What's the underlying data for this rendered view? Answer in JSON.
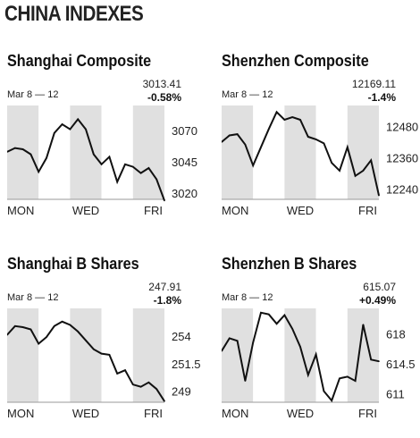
{
  "page": {
    "title": "CHINA INDEXES"
  },
  "chart_data": [
    {
      "type": "line",
      "title": "Shanghai Composite",
      "date_range": "Mar 8 — 12",
      "last_value": "3013.41",
      "change": "-0.58%",
      "x_ticks": [
        "MON",
        "WED",
        "FRI"
      ],
      "y_ticks": [
        3020,
        3045,
        3070
      ],
      "ylim": [
        3015,
        3090
      ],
      "shaded_days": [
        "Mon",
        "Wed",
        "Fri"
      ],
      "x": [
        0.0,
        0.25,
        0.5,
        0.75,
        1.0,
        1.25,
        1.5,
        1.75,
        2.0,
        2.25,
        2.5,
        2.75,
        3.0,
        3.25,
        3.5,
        3.75,
        4.0,
        4.25,
        4.5,
        4.75,
        5.0
      ],
      "values": [
        3053,
        3056,
        3055,
        3051,
        3037,
        3048,
        3068,
        3075,
        3071,
        3079,
        3071,
        3051,
        3043,
        3049,
        3029,
        3043,
        3041,
        3036,
        3040,
        3031,
        3014
      ]
    },
    {
      "type": "line",
      "title": "Shenzhen Composite",
      "date_range": "Mar 8 — 12",
      "last_value": "12169.11",
      "change": "-1.4%",
      "x_ticks": [
        "MON",
        "WED",
        "FRI"
      ],
      "y_ticks": [
        12240,
        12360,
        12480
      ],
      "ylim": [
        12200,
        12560
      ],
      "shaded_days": [
        "Mon",
        "Wed",
        "Fri"
      ],
      "x": [
        0.0,
        0.25,
        0.5,
        0.75,
        1.0,
        1.25,
        1.5,
        1.75,
        2.0,
        2.25,
        2.5,
        2.75,
        3.0,
        3.25,
        3.5,
        3.75,
        4.0,
        4.25,
        4.5,
        4.75,
        5.0
      ],
      "values": [
        12420,
        12445,
        12450,
        12410,
        12330,
        12400,
        12470,
        12535,
        12505,
        12515,
        12505,
        12440,
        12430,
        12415,
        12340,
        12310,
        12400,
        12290,
        12310,
        12350,
        12215
      ]
    },
    {
      "type": "line",
      "title": "Shanghai B Shares",
      "date_range": "Mar 8 — 12",
      "last_value": "247.91",
      "change": "-1.8%",
      "x_ticks": [
        "MON",
        "WED",
        "FRI"
      ],
      "y_ticks": [
        249,
        251.5,
        254
      ],
      "ylim": [
        248,
        256.5
      ],
      "shaded_days": [
        "Mon",
        "Wed",
        "Fri"
      ],
      "x": [
        0.0,
        0.25,
        0.5,
        0.75,
        1.0,
        1.25,
        1.5,
        1.75,
        2.0,
        2.25,
        2.5,
        2.75,
        3.0,
        3.25,
        3.5,
        3.75,
        4.0,
        4.25,
        4.5,
        4.75,
        5.0
      ],
      "values": [
        254.1,
        254.9,
        254.8,
        254.6,
        253.3,
        253.9,
        254.9,
        255.3,
        255.0,
        254.4,
        253.6,
        252.8,
        252.4,
        252.3,
        250.6,
        250.9,
        249.6,
        249.4,
        249.8,
        249.2,
        248.1
      ]
    },
    {
      "type": "line",
      "title": "Shenzhen B Shares",
      "date_range": "Mar 8 — 12",
      "last_value": "615.07",
      "change": "+0.49%",
      "x_ticks": [
        "MON",
        "WED",
        "FRI"
      ],
      "y_ticks": [
        611,
        614.5,
        618
      ],
      "ylim": [
        610,
        621
      ],
      "shaded_days": [
        "Mon",
        "Wed",
        "Fri"
      ],
      "x": [
        0.0,
        0.25,
        0.5,
        0.75,
        1.0,
        1.25,
        1.5,
        1.75,
        2.0,
        2.25,
        2.5,
        2.75,
        3.0,
        3.25,
        3.5,
        3.75,
        4.0,
        4.25,
        4.5,
        4.75,
        5.0
      ],
      "values": [
        616.0,
        617.5,
        617.2,
        612.5,
        617.0,
        620.5,
        620.3,
        619.2,
        620.2,
        618.6,
        616.5,
        613.2,
        615.6,
        611.3,
        610.2,
        612.8,
        613.0,
        612.5,
        619.1,
        615.0,
        614.8
      ]
    }
  ]
}
